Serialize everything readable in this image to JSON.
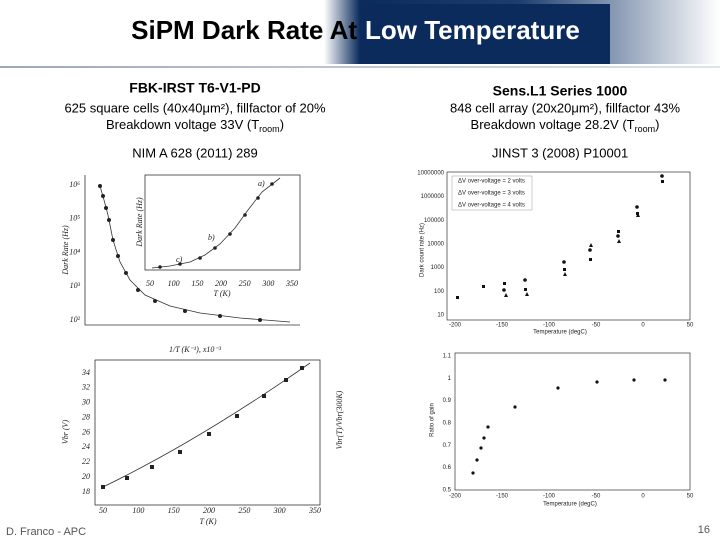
{
  "header": {
    "title_part1": "SiPM Dark Rate At",
    "title_part2": "Low Temperature"
  },
  "left": {
    "name": "FBK-IRST T6-V1-PD",
    "line1": "625 square cells (40x40μm²), fillfactor of  20%",
    "line2": {
      "text": "Breakdown voltage 33V (T",
      "sub": "room",
      "end": ")"
    },
    "reference": "NIM A 628 (2011) 289",
    "figure_top": {
      "ylabel": "Dark Rate (Hz)",
      "xlabel": "1/T (K⁻¹), x10⁻³",
      "yticks": [
        "10⁶",
        "10⁵",
        "10⁴",
        "10³",
        "10²"
      ],
      "inset_xlabel": "T (K)",
      "inset_ylabel": "Dark Rate (Hz)",
      "inset_xticks": [
        "50",
        "100",
        "150",
        "200",
        "250",
        "300",
        "350"
      ],
      "labels": [
        "a)",
        "b)",
        "c)"
      ]
    },
    "figure_bottom": {
      "ylabel": "Vbr (V)",
      "y2label": "Vbr(T)/Vbr(300K)",
      "xlabel": "T (K)",
      "yticks": [
        "34",
        "32",
        "30",
        "28",
        "26",
        "24",
        "22",
        "20",
        "18"
      ],
      "xticks": [
        "50",
        "100",
        "150",
        "200",
        "250",
        "300",
        "350"
      ]
    }
  },
  "right": {
    "name": "Sens.L1 Series 1000",
    "line1": "848 cell array (20x20μm²), fillfactor 43%",
    "line2": {
      "text": "Breakdown voltage 28.2V (T",
      "sub": "room",
      "end": ")"
    },
    "reference": "JINST 3 (2008) P10001",
    "figure_top": {
      "ylabel": "Dark count rate (Hz)",
      "xlabel": "Temperature (degC)",
      "yticks": [
        "10000000",
        "1000000",
        "100000",
        "10000",
        "1000",
        "100",
        "10"
      ],
      "xticks": [
        "-200",
        "-150",
        "-100",
        "-50",
        "0",
        "50"
      ],
      "legend": [
        "ΔV over-voltage = 2 volts",
        "ΔV over-voltage = 3 volts",
        "ΔV over-voltage = 4 volts"
      ]
    },
    "figure_bottom": {
      "ylabel": "Ratio of gain",
      "xlabel": "Temperature (degC)",
      "yticks": [
        "1.1",
        "1",
        "0.9",
        "0.8",
        "0.7",
        "0.6",
        "0.5"
      ],
      "xticks": [
        "-200",
        "-150",
        "-100",
        "-50",
        "0",
        "50"
      ]
    }
  },
  "footer": {
    "author": "D. Franco - APC",
    "page": "16"
  }
}
